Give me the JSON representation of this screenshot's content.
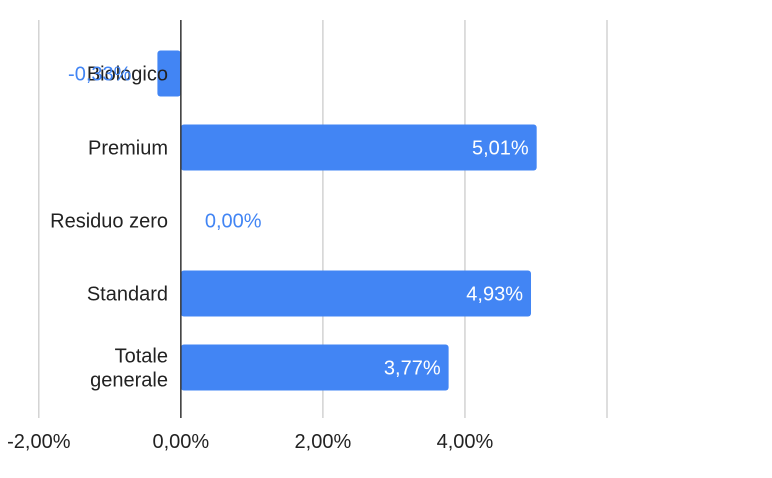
{
  "chart_data": {
    "type": "bar",
    "orientation": "horizontal",
    "categories": [
      "Biologico",
      "Premium",
      "Residuo zero",
      "Standard",
      "Totale generale"
    ],
    "category_label_lines": [
      [
        "Biologico"
      ],
      [
        "Premium"
      ],
      [
        "Residuo zero"
      ],
      [
        "Standard"
      ],
      [
        "Totale",
        "generale"
      ]
    ],
    "values": [
      -0.33,
      5.01,
      0.0,
      4.93,
      3.77
    ],
    "data_labels": [
      "-0,33%",
      "5,01%",
      "0,00%",
      "4,93%",
      "3,77%"
    ],
    "x_ticks": [
      -2,
      0,
      2,
      4
    ],
    "x_tick_labels": [
      "-2,00%",
      "0,00%",
      "2,00%",
      "4,00%"
    ],
    "xlim": [
      -2,
      6
    ],
    "bar_color": "#4285f4",
    "grid": true,
    "title": "",
    "xlabel": "",
    "ylabel": ""
  }
}
